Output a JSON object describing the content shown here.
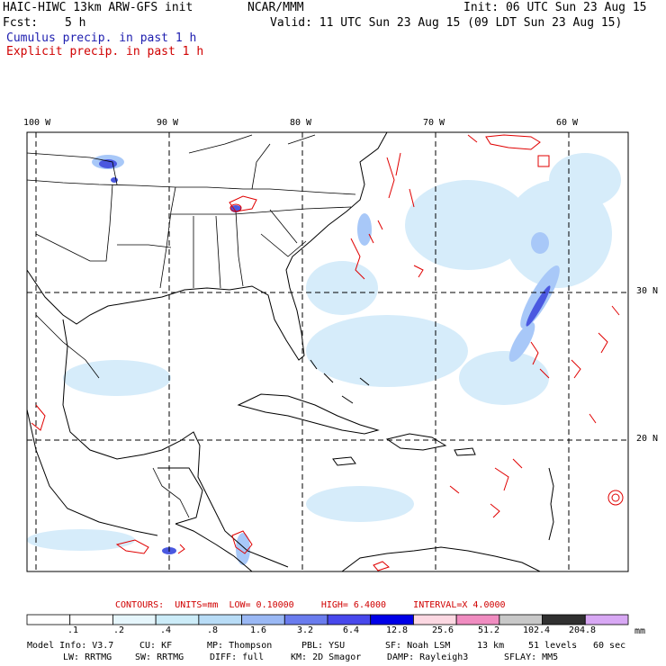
{
  "header": {
    "model_title": "HAIC-HIWC 13km ARW-GFS init",
    "org": "NCAR/MMM",
    "init_line": "Init: 06 UTC Sun 23 Aug 15",
    "fcst_label": "Fcst:",
    "fcst_value": "5 h",
    "valid_line": "Valid: 11 UTC Sun 23 Aug 15 (09 LDT Sun 23 Aug 15)",
    "cumulus_legend": "Cumulus precip. in past 1 h",
    "explicit_legend": "Explicit precip. in past 1 h"
  },
  "map": {
    "lon_labels": [
      "100 W",
      "90 W",
      "80 W",
      "70 W",
      "60 W"
    ],
    "lat_labels": [
      "30 N",
      "20 N"
    ],
    "colors": {
      "land_line": "#000000",
      "grid_line": "#000000",
      "explicit_contour": "#e00000",
      "cumulus_light": "#d6ecfa",
      "cumulus_mid": "#a8c8f8",
      "cumulus_dark": "#4a58e0"
    }
  },
  "contours": {
    "label": "CONTOURS:",
    "units": "UNITS=mm",
    "low": "LOW= 0.10000",
    "high": "HIGH= 6.4000",
    "interval": "INTERVAL=X 4.0000"
  },
  "colorbar": {
    "labels": [
      ".1",
      ".2",
      ".4",
      ".8",
      "1.6",
      "3.2",
      "6.4",
      "12.8",
      "25.6",
      "51.2",
      "102.4",
      "204.8"
    ],
    "unit": "mm",
    "colors": [
      "#ffffff",
      "#ffffff",
      "#e6f6fc",
      "#ccecf8",
      "#b8dcf6",
      "#9ab8f4",
      "#6a7cee",
      "#4848ec",
      "#0000e8",
      "#fcd8e2",
      "#f08cc0",
      "#c8c8c8",
      "#303030",
      "#d8a8f4"
    ]
  },
  "footer": {
    "line1": [
      "Model Info: V3.7",
      "CU: KF",
      "MP: Thompson",
      "PBL: YSU",
      "SF: Noah LSM",
      "13 km",
      "51 levels",
      "60 sec"
    ],
    "line2": [
      "LW: RRTMG",
      "SW: RRTMG",
      "DIFF: full",
      "KM: 2D Smagor",
      "DAMP: Rayleigh3",
      "SFLAY: MM5"
    ]
  }
}
